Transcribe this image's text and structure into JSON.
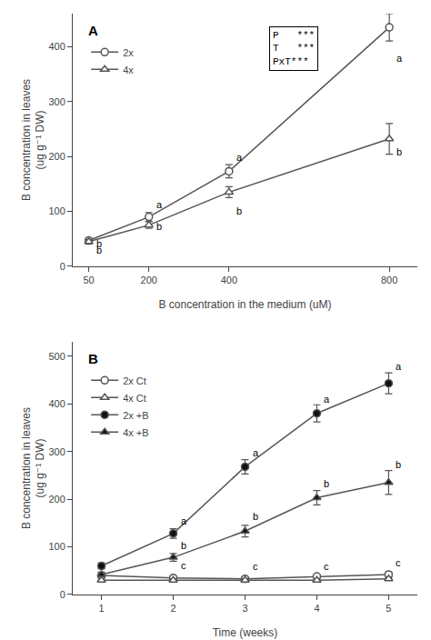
{
  "chart_data": [
    {
      "type": "line",
      "title": "A",
      "x_label": "B concentration in the medium (uM)",
      "y_label": "B concentration in leaves\n(ug g⁻¹ DW)",
      "x": [
        50,
        200,
        400,
        800
      ],
      "xlim": [
        10,
        870
      ],
      "xticks": [
        50,
        200,
        400,
        800
      ],
      "ylim": [
        0,
        460
      ],
      "yticks": [
        0,
        100,
        200,
        300,
        400
      ],
      "color": "#555555",
      "grid": false,
      "legend": "upper left",
      "series": [
        {
          "name": "2x",
          "values": [
            47,
            90,
            173,
            435
          ],
          "yerr": [
            5,
            8,
            12,
            25
          ],
          "marker": "circle",
          "color": "#ffffff"
        },
        {
          "name": "4x",
          "values": [
            45,
            75,
            135,
            232
          ],
          "yerr": [
            4,
            6,
            10,
            28
          ],
          "marker": "triangle-up",
          "color": "#ffffff"
        }
      ],
      "annotations": [
        {
          "text": "P   ***\nT   ***\nPxT***"
        },
        {
          "x": 50,
          "y": 28,
          "text": "b"
        },
        {
          "x": 200,
          "y": 100,
          "text": "a"
        },
        {
          "x": 400,
          "y": 185,
          "text": "a"
        },
        {
          "x": 800,
          "y": 365,
          "text": "a"
        },
        {
          "x": 50,
          "y": 16,
          "text": "b"
        },
        {
          "x": 200,
          "y": 60,
          "text": "b"
        },
        {
          "x": 400,
          "y": 88,
          "text": "b"
        },
        {
          "x": 800,
          "y": 195,
          "text": "b"
        }
      ]
    },
    {
      "type": "line",
      "title": "B",
      "x_label": "Time (weeks)",
      "y_label": "B concentration in leaves\n(ug g⁻¹ DW)",
      "x": [
        1,
        2,
        3,
        4,
        5
      ],
      "xlim": [
        0.6,
        5.4
      ],
      "xticks": [
        1,
        2,
        3,
        4,
        5
      ],
      "ylim": [
        0,
        530
      ],
      "yticks": [
        0,
        100,
        200,
        300,
        400,
        500
      ],
      "color": "#555555",
      "grid": false,
      "legend": "upper left",
      "series": [
        {
          "name": "2x Ct",
          "values": [
            40,
            35,
            33,
            38,
            42
          ],
          "yerr": [
            4,
            4,
            4,
            4,
            5
          ],
          "marker": "circle",
          "color": "#ffffff"
        },
        {
          "name": "4x Ct",
          "values": [
            30,
            30,
            30,
            30,
            33
          ],
          "yerr": [
            3,
            3,
            3,
            3,
            3
          ],
          "marker": "triangle-up",
          "color": "#ffffff"
        },
        {
          "name": "2x +B",
          "values": [
            60,
            128,
            268,
            380,
            443
          ],
          "yerr": [
            6,
            10,
            15,
            18,
            22
          ],
          "marker": "circle",
          "color": "#111111"
        },
        {
          "name": "4x +B",
          "values": [
            42,
            78,
            133,
            203,
            235
          ],
          "yerr": [
            5,
            8,
            12,
            15,
            25
          ],
          "marker": "triangle-up",
          "color": "#111111"
        }
      ],
      "annotations": [
        {
          "x": 2,
          "y": 140,
          "text": "a"
        },
        {
          "x": 3,
          "y": 283,
          "text": "a"
        },
        {
          "x": 4,
          "y": 395,
          "text": "a"
        },
        {
          "x": 5,
          "y": 463,
          "text": "a"
        },
        {
          "x": 2,
          "y": 88,
          "text": "b"
        },
        {
          "x": 3,
          "y": 148,
          "text": "b"
        },
        {
          "x": 4,
          "y": 218,
          "text": "b"
        },
        {
          "x": 5,
          "y": 258,
          "text": "b"
        },
        {
          "x": 2,
          "y": 45,
          "text": "c"
        },
        {
          "x": 3,
          "y": 43,
          "text": "c"
        },
        {
          "x": 4,
          "y": 43,
          "text": "c"
        },
        {
          "x": 5,
          "y": 52,
          "text": "c"
        }
      ]
    }
  ]
}
